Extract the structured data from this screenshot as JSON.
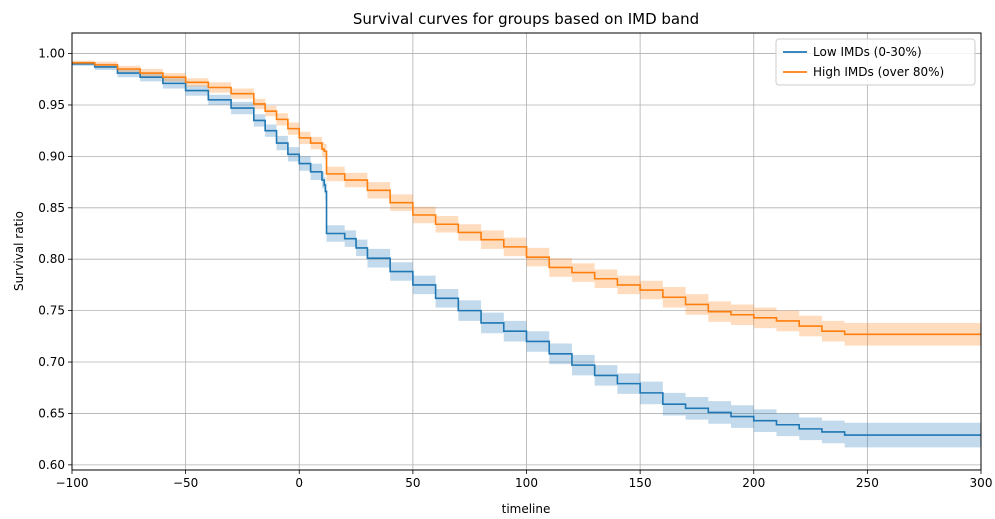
{
  "chart_data": {
    "type": "line",
    "title": "Survival curves for groups based on IMD band",
    "xlabel": "timeline",
    "ylabel": "Survival ratio",
    "xlim": [
      -100,
      300
    ],
    "ylim": [
      0.595,
      1.02
    ],
    "xticks": [
      -100,
      -50,
      0,
      50,
      100,
      150,
      200,
      250,
      300
    ],
    "xtick_labels": [
      "−100",
      "−50",
      "0",
      "50",
      "100",
      "150",
      "200",
      "250",
      "300"
    ],
    "yticks": [
      0.6,
      0.65,
      0.7,
      0.75,
      0.8,
      0.85,
      0.9,
      0.95,
      1.0
    ],
    "ytick_labels": [
      "0.60",
      "0.65",
      "0.70",
      "0.75",
      "0.80",
      "0.85",
      "0.90",
      "0.95",
      "1.00"
    ],
    "grid": true,
    "legend_position": "top-right",
    "series": [
      {
        "name": "Low IMDs (0-30%)",
        "color": "#1f77b4",
        "band_color": "#1f77b4",
        "x": [
          -100,
          -90,
          -80,
          -70,
          -60,
          -50,
          -40,
          -30,
          -20,
          -15,
          -10,
          -5,
          0,
          5,
          10,
          11,
          11.5,
          12,
          20,
          25,
          30,
          40,
          50,
          60,
          70,
          80,
          90,
          100,
          110,
          120,
          130,
          140,
          150,
          160,
          170,
          180,
          190,
          200,
          210,
          220,
          230,
          240,
          250,
          260,
          270,
          280,
          290,
          300
        ],
        "y": [
          0.99,
          0.987,
          0.981,
          0.977,
          0.971,
          0.964,
          0.955,
          0.947,
          0.935,
          0.925,
          0.913,
          0.902,
          0.893,
          0.885,
          0.877,
          0.872,
          0.866,
          0.825,
          0.82,
          0.811,
          0.801,
          0.788,
          0.775,
          0.762,
          0.75,
          0.738,
          0.73,
          0.72,
          0.708,
          0.697,
          0.687,
          0.679,
          0.67,
          0.659,
          0.655,
          0.651,
          0.647,
          0.643,
          0.639,
          0.635,
          0.632,
          0.629,
          0.629,
          0.629,
          0.629,
          0.629,
          0.629,
          0.629
        ],
        "ci_half_width": [
          0.002,
          0.003,
          0.004,
          0.004,
          0.005,
          0.005,
          0.005,
          0.006,
          0.006,
          0.006,
          0.007,
          0.007,
          0.007,
          0.008,
          0.008,
          0.008,
          0.008,
          0.008,
          0.008,
          0.008,
          0.009,
          0.009,
          0.009,
          0.009,
          0.01,
          0.01,
          0.01,
          0.01,
          0.01,
          0.01,
          0.01,
          0.01,
          0.011,
          0.011,
          0.011,
          0.011,
          0.011,
          0.011,
          0.011,
          0.011,
          0.011,
          0.012,
          0.012,
          0.012,
          0.012,
          0.012,
          0.012,
          0.012
        ]
      },
      {
        "name": "High IMDs (over 80%)",
        "color": "#ff7f0e",
        "band_color": "#ff7f0e",
        "x": [
          -100,
          -90,
          -80,
          -70,
          -60,
          -50,
          -40,
          -30,
          -20,
          -15,
          -10,
          -5,
          0,
          5,
          10,
          11,
          11.5,
          12,
          20,
          30,
          40,
          50,
          60,
          70,
          80,
          90,
          100,
          110,
          120,
          130,
          140,
          150,
          160,
          170,
          180,
          190,
          200,
          210,
          220,
          230,
          240,
          250,
          260,
          270,
          280,
          290,
          300
        ],
        "y": [
          0.991,
          0.989,
          0.985,
          0.981,
          0.977,
          0.972,
          0.967,
          0.961,
          0.951,
          0.944,
          0.936,
          0.927,
          0.918,
          0.913,
          0.907,
          0.905,
          0.905,
          0.883,
          0.877,
          0.867,
          0.855,
          0.843,
          0.834,
          0.826,
          0.819,
          0.812,
          0.802,
          0.792,
          0.787,
          0.781,
          0.775,
          0.77,
          0.763,
          0.756,
          0.749,
          0.746,
          0.743,
          0.74,
          0.735,
          0.73,
          0.727,
          0.727,
          0.727,
          0.727,
          0.727,
          0.727,
          0.727
        ],
        "ci_half_width": [
          0.002,
          0.003,
          0.003,
          0.004,
          0.004,
          0.004,
          0.005,
          0.005,
          0.005,
          0.005,
          0.006,
          0.006,
          0.006,
          0.006,
          0.007,
          0.007,
          0.007,
          0.007,
          0.007,
          0.008,
          0.008,
          0.008,
          0.008,
          0.008,
          0.009,
          0.009,
          0.009,
          0.009,
          0.009,
          0.009,
          0.009,
          0.009,
          0.01,
          0.01,
          0.01,
          0.01,
          0.01,
          0.01,
          0.01,
          0.01,
          0.011,
          0.011,
          0.011,
          0.011,
          0.011,
          0.011,
          0.011
        ]
      }
    ]
  }
}
